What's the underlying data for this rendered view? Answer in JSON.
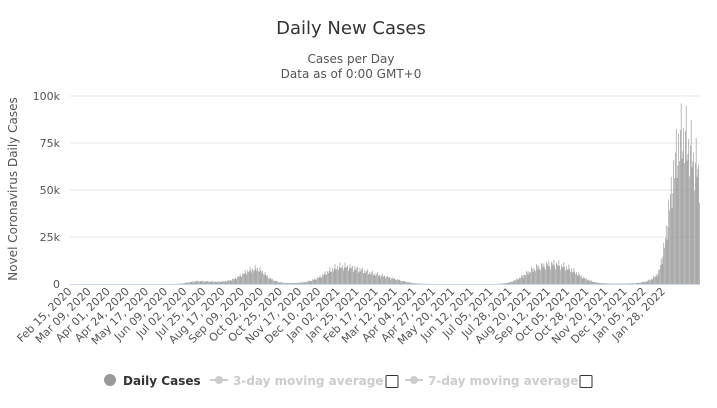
{
  "chart_data": {
    "type": "bar",
    "title": "Daily New Cases",
    "subtitle_1": "Cases per Day",
    "subtitle_2": "Data as of 0:00 GMT+0",
    "ylabel": "Novel Coronavirus Daily Cases",
    "ylim": [
      0,
      100000
    ],
    "yticks": [
      {
        "value": 0,
        "label": "0"
      },
      {
        "value": 25000,
        "label": "25k"
      },
      {
        "value": 50000,
        "label": "50k"
      },
      {
        "value": 75000,
        "label": "75k"
      },
      {
        "value": 100000,
        "label": "100k"
      }
    ],
    "x_tick_labels": [
      "Feb 15, 2020",
      "Mar 09, 2020",
      "Apr 01, 2020",
      "Apr 24, 2020",
      "May 17, 2020",
      "Jun 09, 2020",
      "Jul 02, 2020",
      "Jul 25, 2020",
      "Aug 17, 2020",
      "Sep 09, 2020",
      "Oct 02, 2020",
      "Oct 25, 2020",
      "Nov 17, 2020",
      "Dec 10, 2020",
      "Jan 02, 2021",
      "Jan 25, 2021",
      "Feb 17, 2021",
      "Mar 12, 2021",
      "Apr 04, 2021",
      "Apr 27, 2021",
      "May 20, 2021",
      "Jun 12, 2021",
      "Jul 05, 2021",
      "Jul 28, 2021",
      "Aug 20, 2021",
      "Sep 12, 2021",
      "Oct 05, 2021",
      "Oct 28, 2021",
      "Nov 20, 2021",
      "Dec 13, 2021",
      "Jan 05, 2022",
      "Jan 28, 2022"
    ],
    "tick_interval_days": 23,
    "series": [
      {
        "name": "Daily Cases",
        "color": "#999999",
        "weekly_start": "Feb 15, 2020",
        "weekly_values": [
          0,
          0,
          0,
          0,
          0,
          0,
          0,
          0,
          0,
          0,
          0,
          0,
          0,
          0,
          0,
          0,
          0,
          0,
          0,
          200,
          700,
          1200,
          1500,
          1400,
          1300,
          1200,
          1300,
          1600,
          2500,
          4000,
          6000,
          7500,
          8200,
          6500,
          3500,
          1800,
          900,
          500,
          500,
          600,
          900,
          1500,
          2500,
          4000,
          6000,
          7800,
          9000,
          9200,
          8800,
          8000,
          7200,
          6300,
          5500,
          4800,
          4000,
          3200,
          2400,
          1600,
          900,
          400,
          200,
          100,
          0,
          0,
          0,
          0,
          0,
          0,
          0,
          0,
          0,
          0,
          0,
          0,
          200,
          600,
          1500,
          3000,
          5000,
          7000,
          8500,
          9500,
          10200,
          10500,
          10000,
          9000,
          7500,
          5500,
          3500,
          2000,
          1000,
          500,
          300,
          200,
          200,
          200,
          300,
          400,
          800,
          1500,
          3000,
          6000,
          20000,
          45000,
          68000,
          79000,
          74000,
          66000,
          58000
        ]
      }
    ],
    "legend": [
      {
        "label": "Daily Cases",
        "active": true
      },
      {
        "label": "3-day moving average",
        "active": false
      },
      {
        "label": "7-day moving average",
        "active": false
      }
    ]
  }
}
